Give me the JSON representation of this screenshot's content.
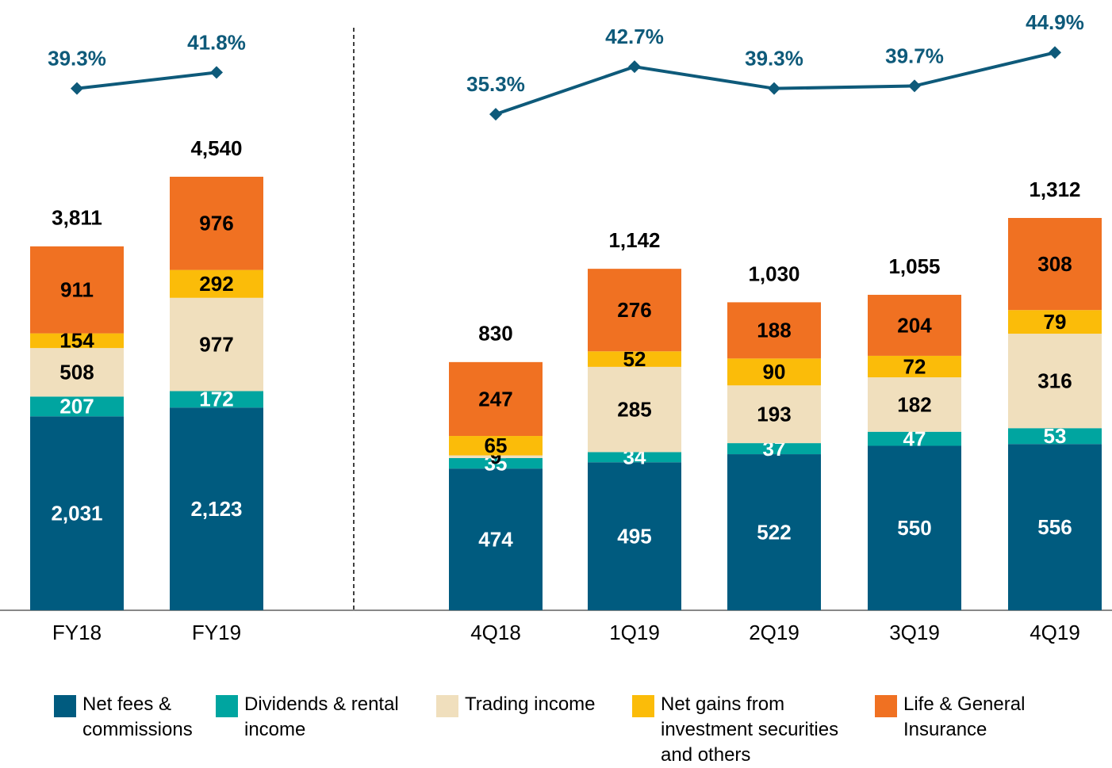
{
  "chart_data": [
    {
      "type": "bar",
      "stacked": true,
      "categories": [
        "FY18",
        "FY19"
      ],
      "series": [
        {
          "name": "Net fees & commissions",
          "color": "#005b7f",
          "label_color": "#ffffff",
          "values": [
            2031,
            2123
          ],
          "value_labels": [
            "2,031",
            "2,123"
          ]
        },
        {
          "name": "Dividends & rental income",
          "color": "#00a5a0",
          "label_color": "#ffffff",
          "values": [
            207,
            172
          ]
        },
        {
          "name": "Trading income",
          "color": "#f0dfbd",
          "label_color": "#000000",
          "values": [
            508,
            977
          ]
        },
        {
          "name": "Net gains from investment securities and others",
          "color": "#fbbc09",
          "label_color": "#000000",
          "values": [
            154,
            292
          ]
        },
        {
          "name": "Life & General Insurance",
          "color": "#f07122",
          "label_color": "#000000",
          "values": [
            911,
            976
          ]
        }
      ],
      "totals": [
        3811,
        4540
      ],
      "total_labels": [
        "3,811",
        "4,540"
      ],
      "line": {
        "color": "#0e5a7a",
        "values": [
          39.3,
          41.8
        ],
        "value_labels": [
          "39.3%",
          "41.8%"
        ]
      }
    },
    {
      "type": "bar",
      "stacked": true,
      "categories": [
        "4Q18",
        "1Q19",
        "2Q19",
        "3Q19",
        "4Q19"
      ],
      "series": [
        {
          "color": "#005b7f",
          "label_color": "#ffffff",
          "values": [
            474,
            495,
            522,
            550,
            556
          ]
        },
        {
          "color": "#00a5a0",
          "label_color": "#ffffff",
          "values": [
            35,
            34,
            37,
            47,
            53
          ]
        },
        {
          "color": "#f0dfbd",
          "label_color": "#000000",
          "values": [
            9,
            285,
            193,
            182,
            316
          ]
        },
        {
          "color": "#fbbc09",
          "label_color": "#000000",
          "values": [
            65,
            52,
            90,
            72,
            79
          ]
        },
        {
          "color": "#f07122",
          "label_color": "#000000",
          "values": [
            247,
            276,
            188,
            204,
            308
          ]
        }
      ],
      "totals": [
        830,
        1142,
        1030,
        1055,
        1312
      ],
      "total_labels": [
        "830",
        "1,142",
        "1,030",
        "1,055",
        "1,312"
      ],
      "line": {
        "color": "#0e5a7a",
        "values": [
          35.3,
          42.7,
          39.3,
          39.7,
          44.9
        ],
        "value_labels": [
          "35.3%",
          "42.7%",
          "39.3%",
          "39.7%",
          "44.9%"
        ]
      }
    }
  ]
}
